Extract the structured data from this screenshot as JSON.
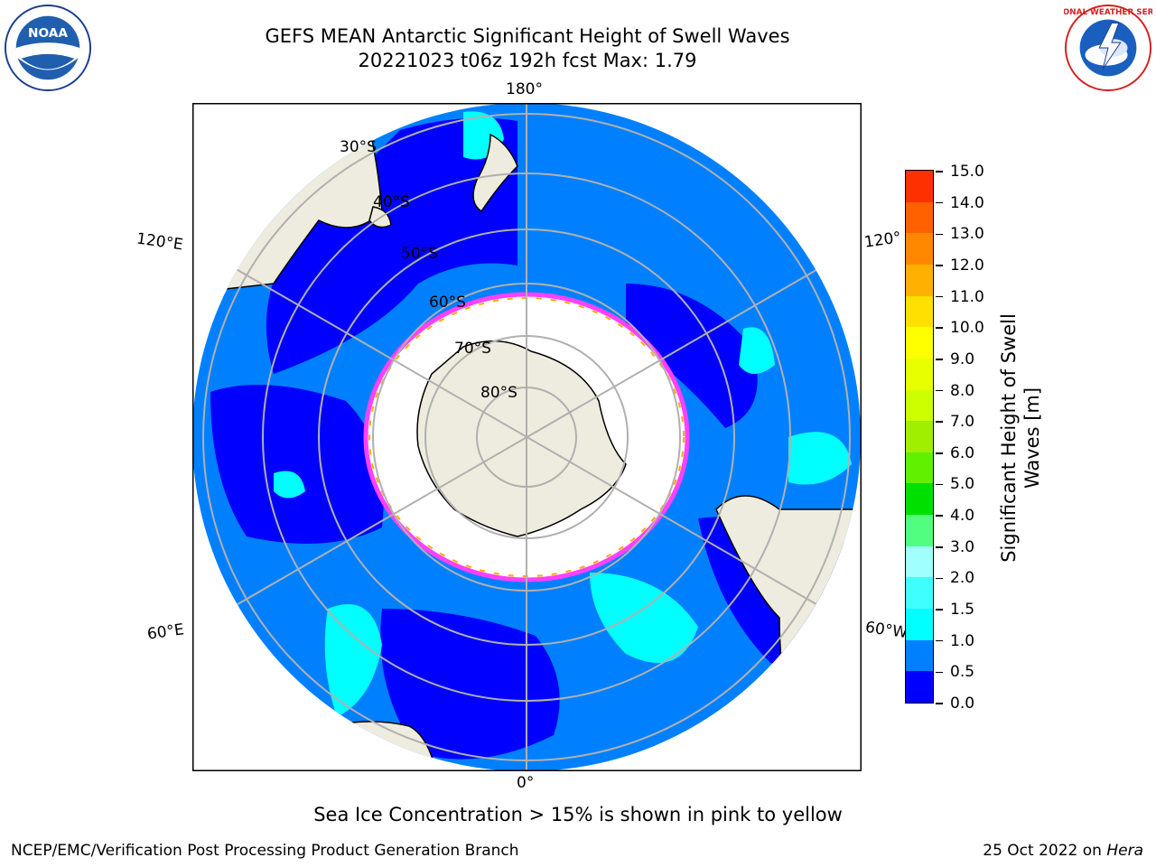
{
  "header": {
    "title_line1": "GEFS MEAN Antarctic Significant Height of Swell Waves",
    "title_line2": "20221023 t06z 192h fcst   Max: 1.79"
  },
  "map": {
    "projection": "south-polar-stereographic",
    "lon_labels": {
      "top": "180°",
      "bottom": "0°",
      "left_upper": "120°E",
      "left_lower": "60°E",
      "right_upper": "120°",
      "right_lower": "60°W"
    },
    "lat_labels": [
      "30°S",
      "40°S",
      "50°S",
      "60°S",
      "70°S",
      "80°S"
    ],
    "colors": {
      "land": "#eeecde",
      "ice": "#ffffff",
      "grid": "#b0b0b0",
      "band_0_05": "#0000ff",
      "band_05_10": "#0080ff",
      "band_10_15": "#00ffff",
      "band_15_20": "#40ffff",
      "ice_edge": [
        "#ff40ff",
        "#ff8000",
        "#ffff00"
      ]
    }
  },
  "colorbar": {
    "title_line1": "Significant Height of Swell",
    "title_line2": "Waves [m]",
    "ticks": [
      "0.0",
      "0.5",
      "1.0",
      "1.5",
      "2.0",
      "3.0",
      "4.0",
      "5.0",
      "6.0",
      "7.0",
      "8.0",
      "9.0",
      "10.0",
      "11.0",
      "12.0",
      "13.0",
      "14.0",
      "15.0"
    ],
    "colors": [
      "#0000ff",
      "#0080ff",
      "#00ffff",
      "#40ffff",
      "#a0ffff",
      "#50ff80",
      "#00e000",
      "#60f000",
      "#a0ee00",
      "#ccff00",
      "#e8ff00",
      "#ffff00",
      "#ffe000",
      "#ffb000",
      "#ff8800",
      "#ff6000",
      "#ff3000",
      "#ff0000"
    ]
  },
  "note": "Sea Ice Concentration > 15% is shown in pink to yellow",
  "footer": {
    "left": "NCEP/EMC/Verification Post Processing Product Generation Branch",
    "right_date": "25 Oct 2022 on ",
    "right_machine": "Hera"
  },
  "logos": {
    "left": "NOAA",
    "right": "NATIONAL WEATHER SERVICE"
  }
}
